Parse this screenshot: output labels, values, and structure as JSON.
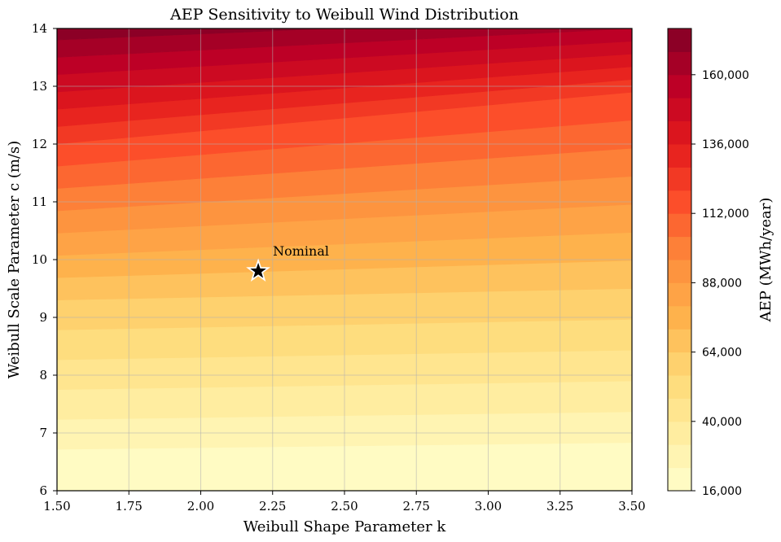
{
  "chart_data": {
    "type": "heatmap",
    "title": "AEP Sensitivity to Weibull Wind Distribution",
    "xlabel": "Weibull Shape Parameter k",
    "ylabel": "Weibull Scale Parameter c (m/s)",
    "xlim": [
      1.5,
      3.5
    ],
    "ylim": [
      6,
      14
    ],
    "x_ticks": [
      "1.50",
      "1.75",
      "2.00",
      "2.25",
      "2.50",
      "2.75",
      "3.00",
      "3.25",
      "3.50"
    ],
    "y_ticks": [
      "6",
      "7",
      "8",
      "9",
      "10",
      "11",
      "12",
      "13",
      "14"
    ],
    "grid": true,
    "colormap": "YlOrRd",
    "colorbar": {
      "label": "AEP (MWh/year)",
      "min": 16000,
      "max": 176000,
      "level_step": 8000,
      "ticks": [
        "16,000",
        "40,000",
        "64,000",
        "88,000",
        "112,000",
        "136,000",
        "160,000"
      ]
    },
    "surface_samples": [
      {
        "k": 1.5,
        "c": 6.2,
        "aep": 16000
      },
      {
        "k": 3.5,
        "c": 6.3,
        "aep": 16000
      },
      {
        "k": 1.5,
        "c": 9.3,
        "aep": 64000
      },
      {
        "k": 3.5,
        "c": 9.5,
        "aep": 64000
      },
      {
        "k": 1.5,
        "c": 12.0,
        "aep": 120000
      },
      {
        "k": 3.5,
        "c": 12.9,
        "aep": 120000
      },
      {
        "k": 1.5,
        "c": 13.8,
        "aep": 168000
      },
      {
        "k": 3.5,
        "c": 14.0,
        "aep": 160000
      }
    ],
    "annotations": [
      {
        "label": "Nominal",
        "k": 2.2,
        "c": 9.8,
        "marker": "star"
      }
    ]
  }
}
